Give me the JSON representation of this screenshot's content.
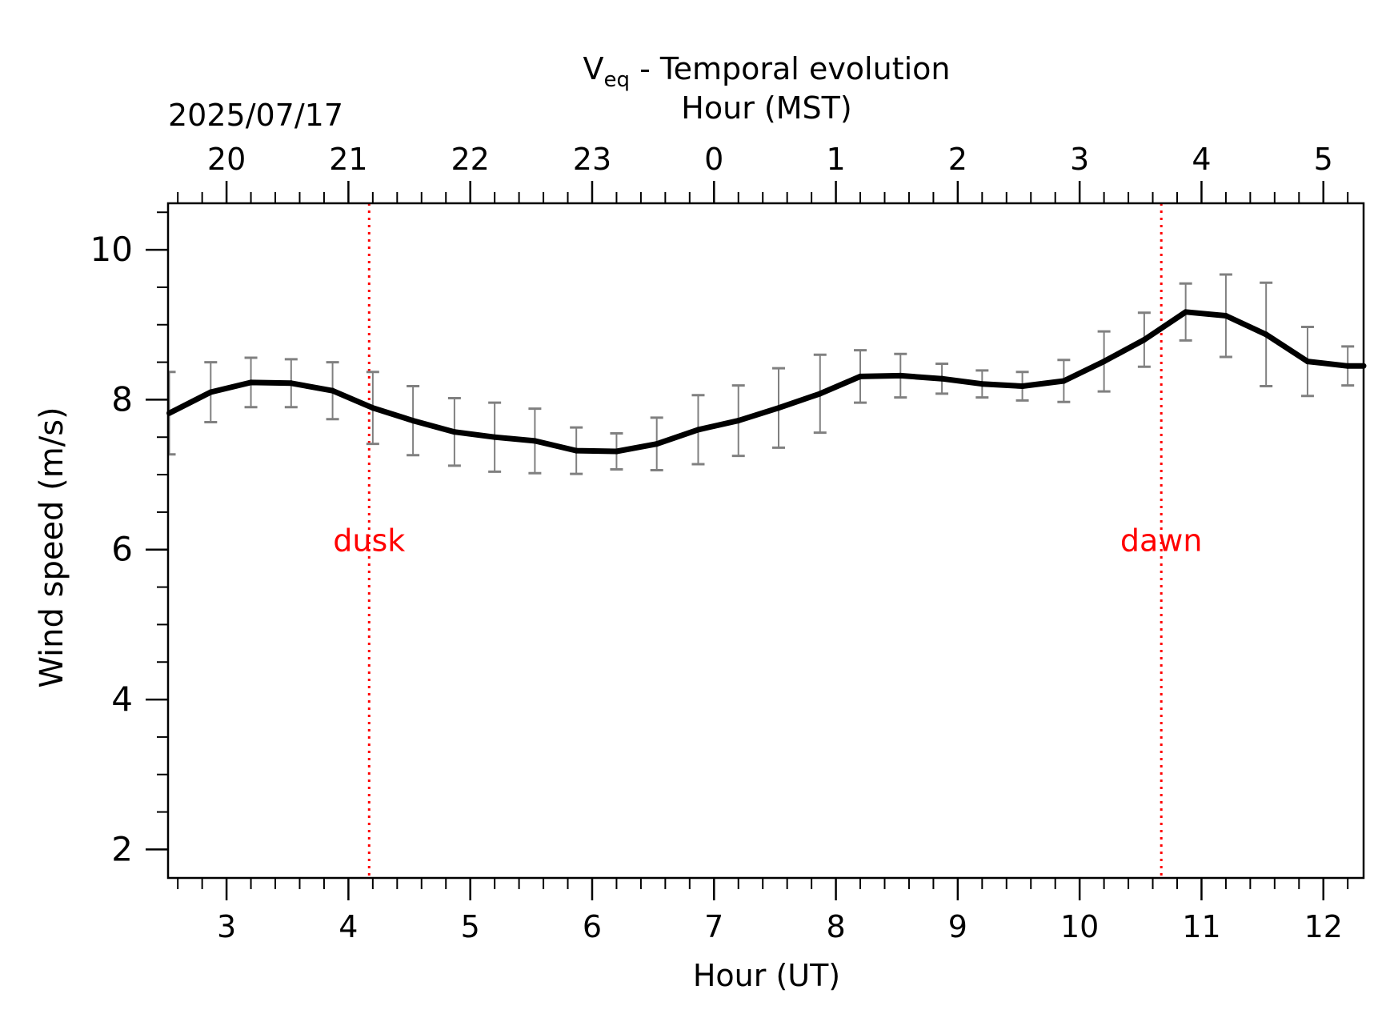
{
  "chart_data": {
    "type": "line",
    "title": "Temporal evolution",
    "title_prefix": "V",
    "title_subscript": "eq",
    "title_separator": " - ",
    "xlabel": "Hour (UT)",
    "ylabel": "Wind speed (m/s)",
    "top_axis_label": "Hour (MST)",
    "date_label": "2025/07/17",
    "xlim": [
      2.52,
      12.33
    ],
    "ylim": [
      1.62,
      10.62
    ],
    "x_ticks": [
      3,
      4,
      5,
      6,
      7,
      8,
      9,
      10,
      11,
      12
    ],
    "x_tick_labels": [
      "3",
      "4",
      "5",
      "6",
      "7",
      "8",
      "9",
      "10",
      "11",
      "12"
    ],
    "top_ticks": [
      3,
      4,
      5,
      6,
      7,
      8,
      9,
      10,
      11,
      12
    ],
    "top_tick_labels": [
      "20",
      "21",
      "22",
      "23",
      "0",
      "1",
      "2",
      "3",
      "4",
      "5"
    ],
    "y_ticks": [
      2,
      4,
      6,
      8,
      10
    ],
    "y_tick_labels": [
      "2",
      "4",
      "6",
      "8",
      "10"
    ],
    "grid": false,
    "series": [
      {
        "color": "#000000",
        "errorbar_color": "#808080",
        "x": [
          2.53,
          2.87,
          3.2,
          3.53,
          3.87,
          4.2,
          4.53,
          4.87,
          5.2,
          5.53,
          5.87,
          6.2,
          6.53,
          6.87,
          7.2,
          7.53,
          7.87,
          8.2,
          8.53,
          8.87,
          9.2,
          9.53,
          9.87,
          10.2,
          10.53,
          10.87,
          11.2,
          11.53,
          11.87,
          12.2,
          12.33
        ],
        "y": [
          7.82,
          8.1,
          8.23,
          8.22,
          8.12,
          7.89,
          7.72,
          7.57,
          7.5,
          7.45,
          7.32,
          7.31,
          7.41,
          7.6,
          7.72,
          7.89,
          8.08,
          8.31,
          8.32,
          8.28,
          8.21,
          8.18,
          8.25,
          8.51,
          8.8,
          9.17,
          9.12,
          8.87,
          8.51,
          8.45,
          8.45
        ],
        "yerr": [
          0.55,
          0.4,
          0.33,
          0.32,
          0.38,
          0.48,
          0.46,
          0.45,
          0.46,
          0.43,
          0.31,
          0.24,
          0.35,
          0.46,
          0.47,
          0.53,
          0.52,
          0.35,
          0.29,
          0.2,
          0.18,
          0.19,
          0.28,
          0.4,
          0.36,
          0.38,
          0.55,
          0.69,
          0.46,
          0.26,
          null
        ]
      }
    ],
    "annotations": [
      {
        "text": "dusk",
        "x": 4.17,
        "y": 6.13,
        "color": "#ff0000"
      },
      {
        "text": "dawn",
        "x": 10.67,
        "y": 6.13,
        "color": "#ff0000"
      }
    ],
    "vlines": [
      {
        "x": 4.17,
        "color": "#ff0000",
        "style": "dotted"
      },
      {
        "x": 10.67,
        "color": "#ff0000",
        "style": "dotted"
      }
    ]
  }
}
